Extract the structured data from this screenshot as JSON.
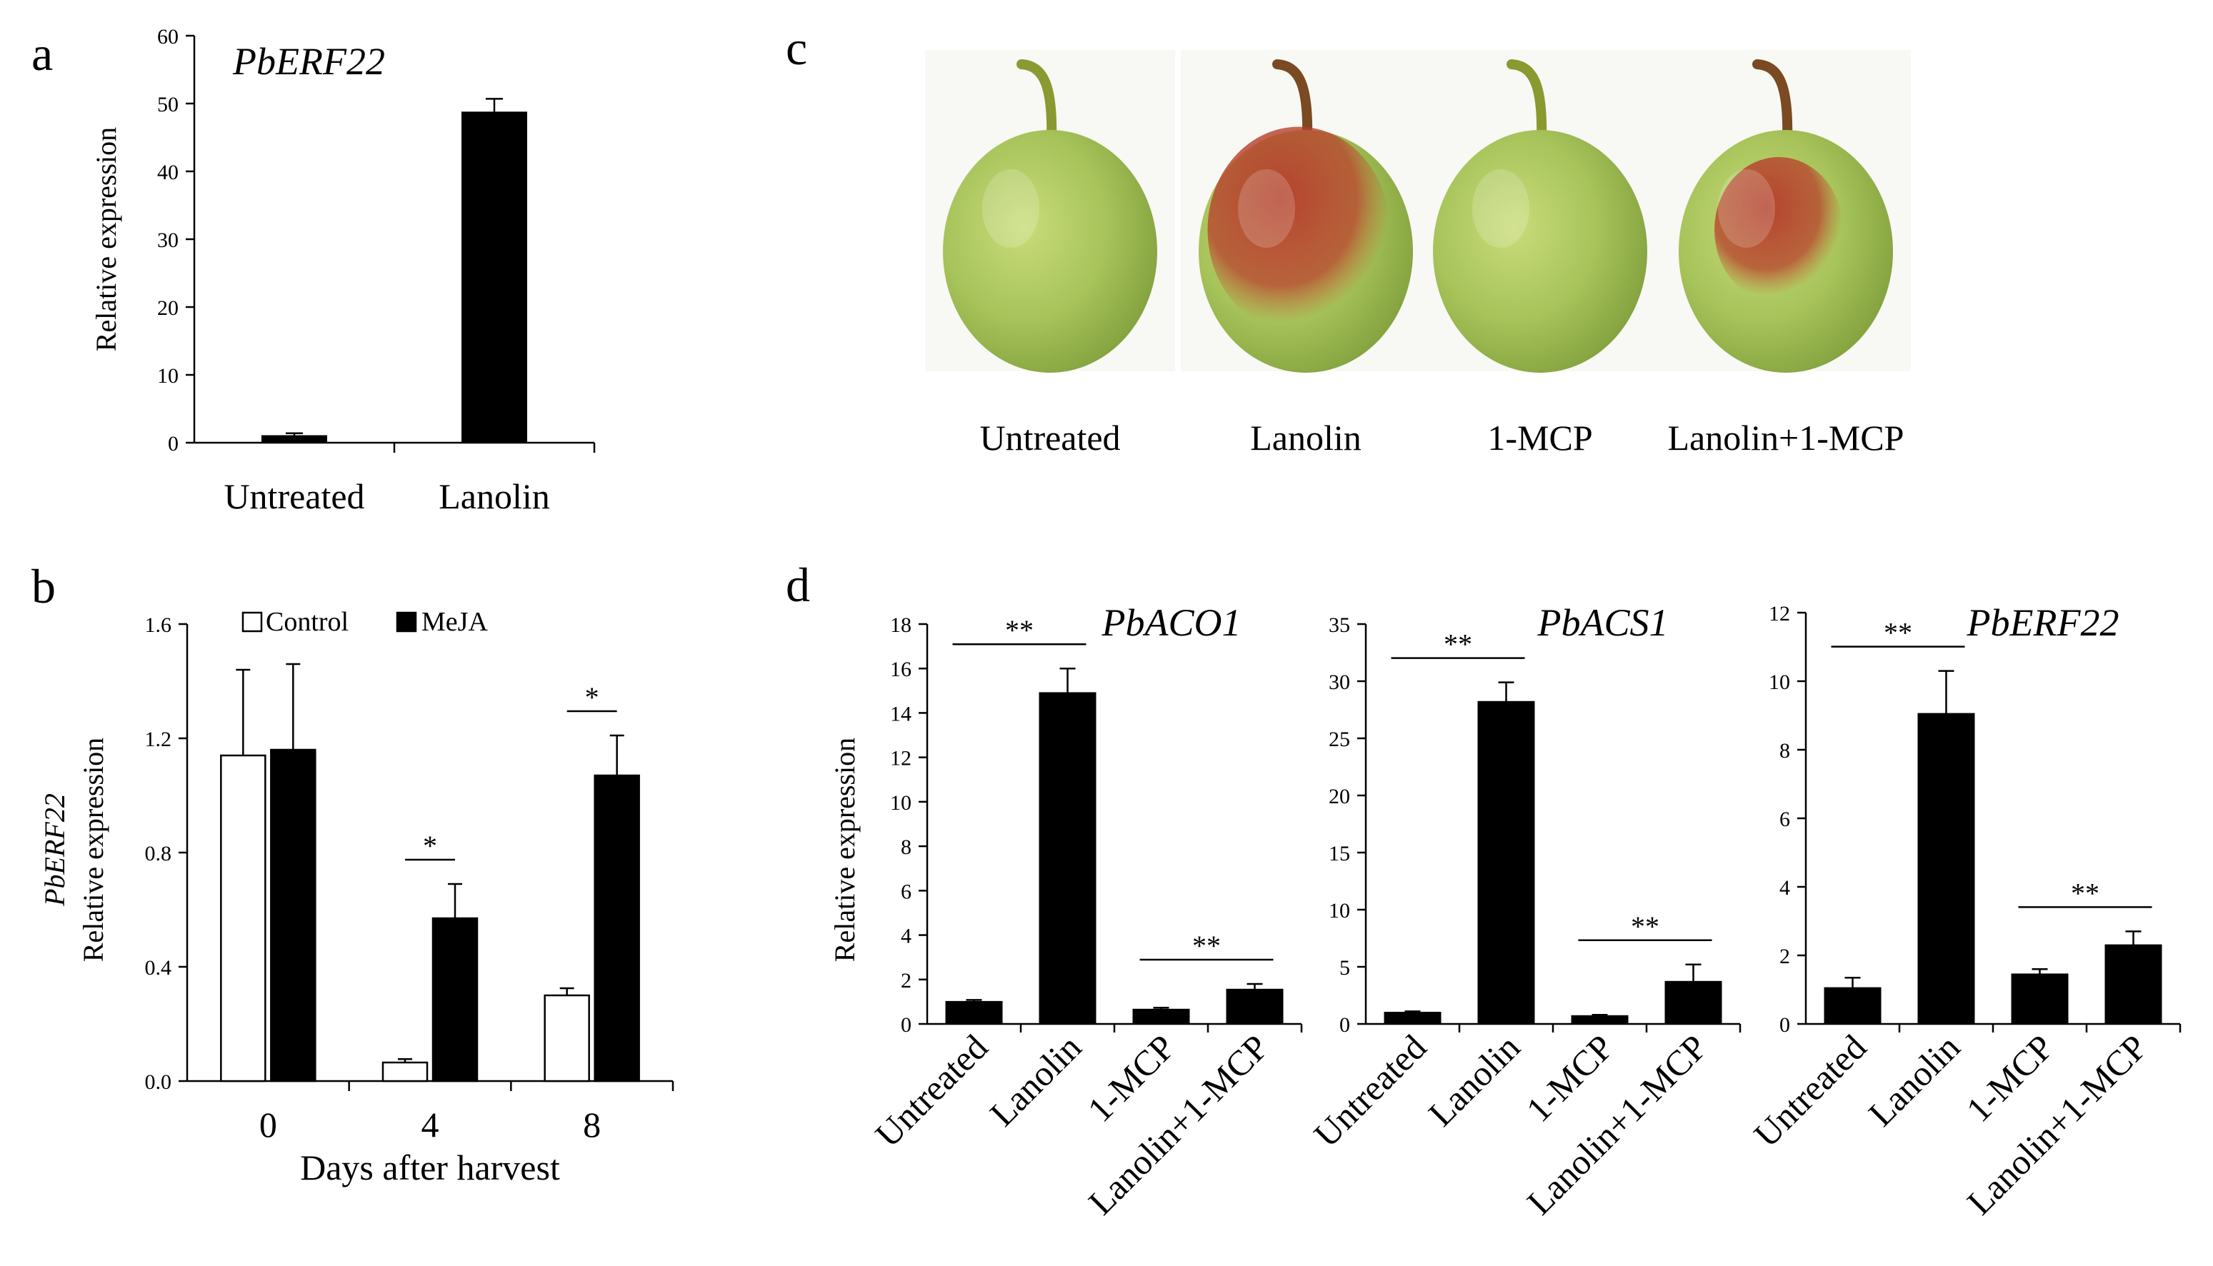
{
  "panels": {
    "a": {
      "letter": "a",
      "chart_data": {
        "type": "bar",
        "title": "PbERF22",
        "ylabel": "Relative expression",
        "categories": [
          "Untreated",
          "Lanolin"
        ],
        "values": [
          1.0,
          48.7
        ],
        "errors": [
          0.4,
          2.0
        ],
        "ylim": [
          0,
          60
        ],
        "yticks": [
          "0",
          "10",
          "20",
          "30",
          "40",
          "50",
          "60"
        ],
        "bar_color": "#000000"
      }
    },
    "b": {
      "letter": "b",
      "chart_data": {
        "type": "bar",
        "xlabel": "Days after harvest",
        "ylabel_gene": "PbERF22",
        "ylabel": "Relative expression",
        "categories": [
          "0",
          "4",
          "8"
        ],
        "ylim": [
          0,
          1.6
        ],
        "yticks": [
          "0.0",
          "0.4",
          "0.8",
          "1.2",
          "1.6"
        ],
        "series": [
          {
            "name": "Control",
            "values": [
              1.14,
              0.065,
              0.3
            ],
            "errors": [
              0.3,
              0.012,
              0.025
            ],
            "color": "#ffffff"
          },
          {
            "name": "MeJA",
            "values": [
              1.16,
              0.57,
              1.07
            ],
            "errors": [
              0.3,
              0.12,
              0.14
            ],
            "color": "#000000"
          }
        ],
        "significance": [
          "",
          "*",
          "*"
        ]
      }
    },
    "c": {
      "letter": "c",
      "photos": [
        {
          "label": "Untreated",
          "blush": 0
        },
        {
          "label": "Lanolin",
          "blush": 0.85
        },
        {
          "label": "1-MCP",
          "blush": 0
        },
        {
          "label": "Lanolin+1-MCP",
          "blush": 0.6
        }
      ]
    },
    "d": {
      "letter": "d",
      "ylabel": "Relative expression",
      "categories": [
        "Untreated",
        "Lanolin",
        "1-MCP",
        "Lanolin+1-MCP"
      ],
      "chart_data": [
        {
          "type": "bar",
          "title": "PbACO1",
          "values": [
            1.0,
            14.9,
            0.65,
            1.55
          ],
          "errors": [
            0.08,
            1.1,
            0.08,
            0.25
          ],
          "ylim": [
            0,
            18
          ],
          "yticks": [
            "0",
            "2",
            "4",
            "6",
            "8",
            "10",
            "12",
            "14",
            "16",
            "18"
          ],
          "significance": [
            {
              "pair": [
                0,
                1
              ],
              "label": "**"
            },
            {
              "pair": [
                2,
                3
              ],
              "label": "**"
            }
          ]
        },
        {
          "type": "bar",
          "title": "PbACS1",
          "values": [
            1.0,
            28.2,
            0.7,
            3.7
          ],
          "errors": [
            0.1,
            1.7,
            0.1,
            1.5
          ],
          "ylim": [
            0,
            35
          ],
          "yticks": [
            "0",
            "5",
            "10",
            "15",
            "20",
            "25",
            "30",
            "35"
          ],
          "significance": [
            {
              "pair": [
                0,
                1
              ],
              "label": "**"
            },
            {
              "pair": [
                2,
                3
              ],
              "label": "**"
            }
          ]
        },
        {
          "type": "bar",
          "title": "PbERF22",
          "values": [
            1.05,
            9.05,
            1.45,
            2.3
          ],
          "errors": [
            0.3,
            1.25,
            0.15,
            0.4
          ],
          "ylim": [
            0,
            12
          ],
          "yticks": [
            "0",
            "2",
            "4",
            "6",
            "8",
            "10",
            "12"
          ],
          "significance": [
            {
              "pair": [
                0,
                1
              ],
              "label": "**"
            },
            {
              "pair": [
                2,
                3
              ],
              "label": "**"
            }
          ]
        }
      ]
    }
  }
}
